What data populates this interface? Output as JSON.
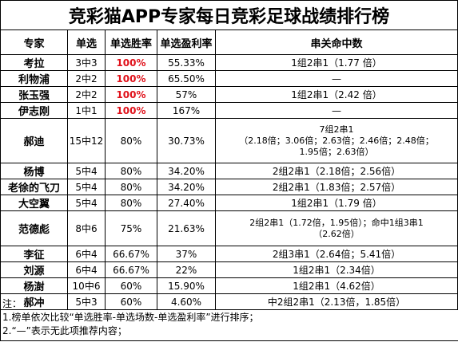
{
  "title": "竞彩猫APP专家每日竞彩足球战绩排行榜",
  "headers": [
    "专家",
    "单选",
    "单选胜率",
    "单选盈利率",
    "串关命中数"
  ],
  "rows": [
    {
      "name": "考拉",
      "single": "3中3",
      "win_rate": "100%",
      "profit_rate": "55.33%",
      "parlay": "1组2串1（1.77 倍）",
      "highlight": true
    },
    {
      "name": "利物浦",
      "single": "2中2",
      "win_rate": "100%",
      "profit_rate": "65.50%",
      "parlay": "—",
      "highlight": true
    },
    {
      "name": "张玉强",
      "single": "2中2",
      "win_rate": "100%",
      "profit_rate": "57%",
      "parlay": "1组2串1（2.42 倍）",
      "highlight": true
    },
    {
      "name": "伊志刚",
      "single": "1中1",
      "win_rate": "100%",
      "profit_rate": "167%",
      "parlay": "—",
      "highlight": true
    },
    {
      "name": "郝迪",
      "single": "15中12",
      "win_rate": "80%",
      "profit_rate": "30.73%",
      "parlay_lines": [
        "7组2串1",
        "（2.18倍；3.06倍；2.63倍；2.46倍；2.48倍；",
        "1.95倍；2.63倍）"
      ],
      "highlight": false
    },
    {
      "name": "杨博",
      "single": "5中4",
      "win_rate": "80%",
      "profit_rate": "34.20%",
      "parlay": "2组2串1（2.18倍；2.56倍）",
      "highlight": false
    },
    {
      "name": "老徐的飞刀",
      "single": "5中4",
      "win_rate": "80%",
      "profit_rate": "34.20%",
      "parlay": "2组2串1（1.83倍；2.57倍）",
      "highlight": false
    },
    {
      "name": "大空翼",
      "single": "5中4",
      "win_rate": "80%",
      "profit_rate": "27.40%",
      "parlay": "1组2串1（1.79 倍）",
      "highlight": false
    },
    {
      "name": "范德彪",
      "single": "8中6",
      "win_rate": "75%",
      "profit_rate": "21.63%",
      "parlay_lines": [
        "2组2串1（1.72倍，1.95倍）；命中1组3串1",
        "（2.62倍）"
      ],
      "highlight": false
    },
    {
      "name": "李征",
      "single": "6中4",
      "win_rate": "66.67%",
      "profit_rate": "37%",
      "parlay": "2组3串1（2.64倍；5.41倍）",
      "highlight": false
    },
    {
      "name": "刘源",
      "single": "6中4",
      "win_rate": "66.67%",
      "profit_rate": "22%",
      "parlay": "1组2串1（2.34倍）",
      "highlight": false
    },
    {
      "name": "杨澍",
      "single": "10中6",
      "win_rate": "60%",
      "profit_rate": "15.90%",
      "parlay": "1组2串1（4.62倍）",
      "highlight": false
    },
    {
      "name": "郝冲",
      "single": "5中3",
      "win_rate": "60%",
      "profit_rate": "4.60%",
      "parlay": "中2组2串1（2.13倍，1.85倍）",
      "highlight": false
    }
  ],
  "notes": [
    "注：",
    "1.榜单依次比较“单选胜率-单选场数-单选盈利率”进行排序；",
    "2.“—”表示无此项推荐内容；"
  ]
}
